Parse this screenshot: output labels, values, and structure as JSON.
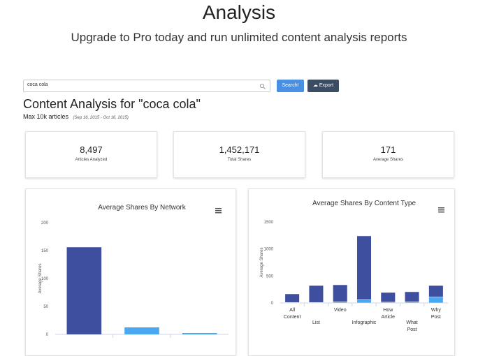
{
  "header": {
    "title": "Analysis",
    "subtitle": "Upgrade to Pro today and run unlimited content analysis reports"
  },
  "search": {
    "query": "coca cola",
    "search_button": "Search!",
    "export_button": "Export"
  },
  "report": {
    "title": "Content Analysis for \"coca cola\"",
    "scope": "Max 10k articles",
    "date_range": "(Sep 16, 2015 - Oct 16, 2015)"
  },
  "stats": [
    {
      "value": "8,497",
      "label": "Articles Analyzed"
    },
    {
      "value": "1,452,171",
      "label": "Total Shares"
    },
    {
      "value": "171",
      "label": "Average Shares"
    }
  ],
  "chart_data": [
    {
      "type": "bar",
      "title": "Average Shares By Network",
      "y_label": "Average Shares",
      "categories": [
        null,
        null,
        null
      ],
      "values": [
        156,
        12.5,
        2.5
      ],
      "colors": [
        "#3f4f9f",
        "#4aa8f2",
        "#4aa8f2"
      ],
      "ylim": [
        0,
        200
      ],
      "yticks": [
        0,
        50,
        100,
        150,
        200
      ],
      "grid": false
    },
    {
      "type": "stacked-bar",
      "title": "Average Shares By Content Type",
      "y_label": "Average Shares",
      "categories": [
        "All Content",
        "List",
        "Video",
        "Infographic",
        "How Article",
        "What Post",
        "Why Post"
      ],
      "series": [
        {
          "color": "#4aa8f2",
          "values": [
            10,
            10,
            20,
            60,
            15,
            20,
            110
          ]
        },
        {
          "color": "#3f4f9f",
          "values": [
            158,
            313,
            316,
            1182,
            179,
            187,
            213
          ]
        }
      ],
      "ylim": [
        0,
        1500
      ],
      "yticks": [
        0,
        500,
        1000,
        1500
      ],
      "grid": false
    }
  ]
}
